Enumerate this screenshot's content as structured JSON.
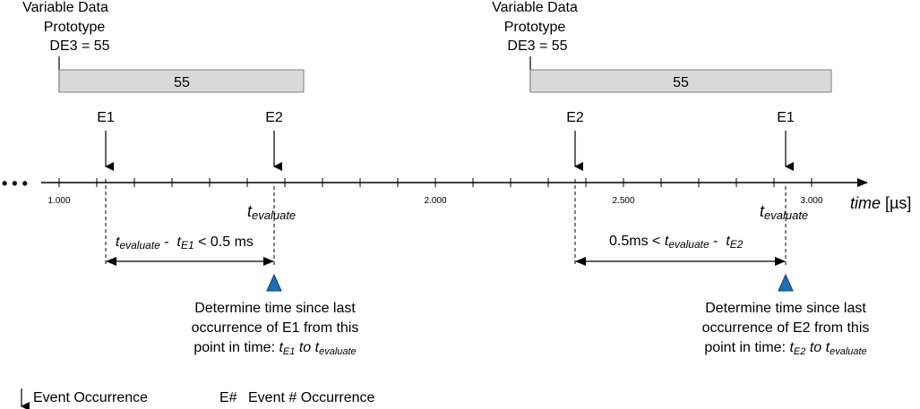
{
  "prototypes": [
    {
      "lines": [
        "Variable Data",
        "Prototype",
        "DE3 = 55"
      ],
      "bar_value": "55"
    },
    {
      "lines": [
        "Variable Data",
        "Prototype",
        "DE3 = 55"
      ],
      "bar_value": "55"
    }
  ],
  "events": {
    "left": [
      "E1",
      "E2"
    ],
    "right": [
      "E2",
      "E1"
    ]
  },
  "axis": {
    "ellipsis": "• • •",
    "tick_labels": [
      "1.000",
      "2.000",
      "2.500",
      "3.000"
    ],
    "label_time": "time",
    "label_unit": "[µs]"
  },
  "evaluate": {
    "t": "t",
    "sub": "evaluate"
  },
  "conditions": {
    "left": {
      "t1": "t",
      "t1_sub": "evaluate",
      "minus": " -  ",
      "t2": "t",
      "t2_sub": "E1",
      "rest": " < 0.5 ms"
    },
    "right": {
      "prefix": "0.5ms < ",
      "t1": "t",
      "t1_sub": "evaluate",
      "minus": " -  ",
      "t2": "t",
      "t2_sub": "E2"
    }
  },
  "notes": {
    "left": {
      "line1": "Determine time since last",
      "line2": "occurrence of E1 from this",
      "line3_prefix": "point in time: ",
      "t_a": "t",
      "t_a_sub": "E1",
      "to": " to ",
      "t_b": "t",
      "t_b_sub": "evaluate"
    },
    "right": {
      "line1": "Determine time since last",
      "line2": "occurrence of E2 from this",
      "line3_prefix": "point in time: ",
      "t_a": "t",
      "t_a_sub": "E2",
      "to": " to ",
      "t_b": "t",
      "t_b_sub": "evaluate"
    }
  },
  "legend": {
    "event_occurrence": "Event Occurrence",
    "hash_key": "E#",
    "hash_desc": "Event # Occurrence"
  },
  "colors": {
    "bar_fill": "#d9d9d9",
    "bar_stroke": "#7f7f7f",
    "marker_fill": "#1f6fb5",
    "marker_stroke": "#0b3f6e"
  }
}
